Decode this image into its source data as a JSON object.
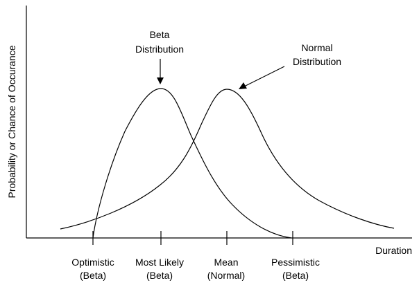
{
  "colors": {
    "background": "#ffffff",
    "ink": "#000000"
  },
  "axes": {
    "y_label": "Probability or Chance of Occurance",
    "x_label": "Duration"
  },
  "callouts": {
    "beta": [
      "Beta",
      "Distribution"
    ],
    "normal": [
      "Normal",
      "Distribution"
    ]
  },
  "ticks": [
    {
      "line1": "Optimistic",
      "line2": "(Beta)"
    },
    {
      "line1": "Most Likely",
      "line2": "(Beta)"
    },
    {
      "line1": "Mean",
      "line2": "(Normal)"
    },
    {
      "line1": "Pessimistic",
      "line2": "(Beta)"
    }
  ],
  "curves": [
    {
      "name": "beta-distribution-curve",
      "shape": "right-skewed"
    },
    {
      "name": "normal-distribution-curve",
      "shape": "bell"
    }
  ]
}
